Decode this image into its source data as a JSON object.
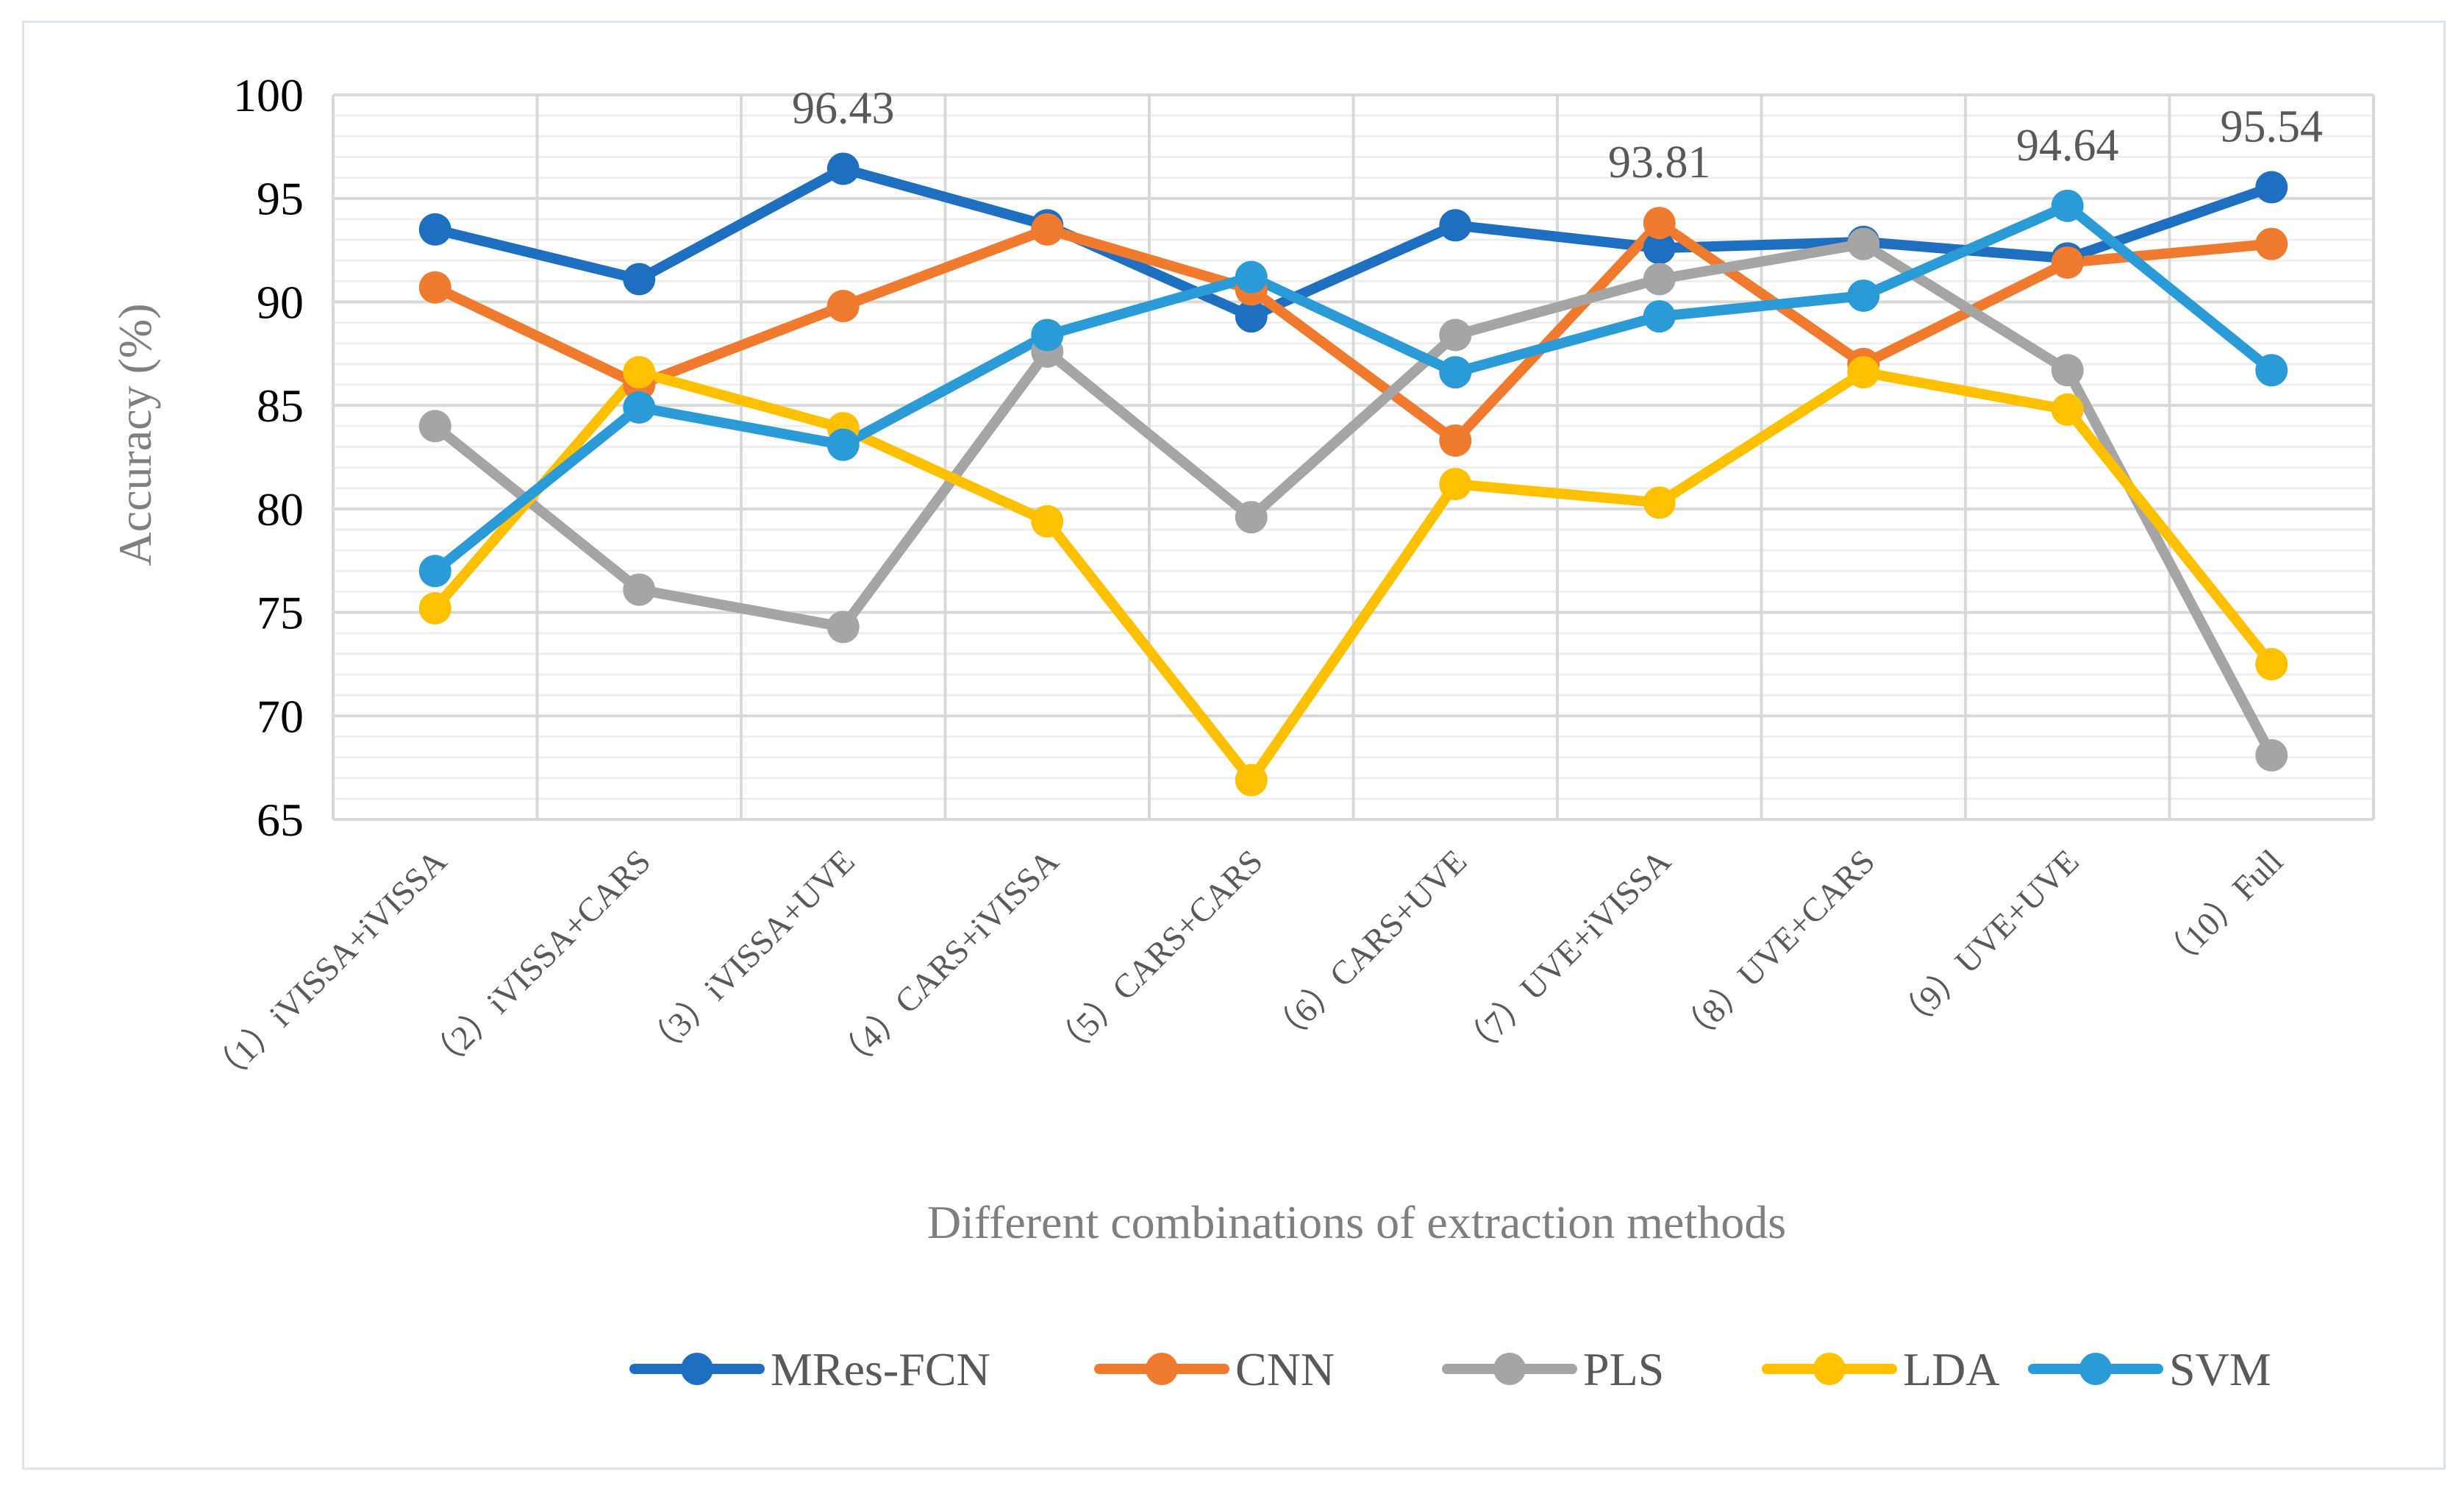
{
  "chart_data": {
    "type": "line",
    "title": "",
    "xlabel": "Different combinations of extraction methods",
    "ylabel": "Accuracy (%)",
    "ylim": [
      65,
      100
    ],
    "yticks": [
      65,
      70,
      75,
      80,
      85,
      90,
      95,
      100
    ],
    "grid": true,
    "legend": "bottom",
    "categories": [
      "（1）iVISSA+iVISSA",
      "（2）iVISSA+CARS",
      "（3）iVISSA+UVE",
      "（4）CARS+iVISSA",
      "（5）CARS+CARS",
      "（6）CARS+UVE",
      "（7）UVE+iVISSA",
      "（8）UVE+CARS",
      "（9）UVE+UVE",
      "（10）Full"
    ],
    "series": [
      {
        "name": "MRes-FCN",
        "color": "#1f6fc1",
        "values": [
          93.5,
          91.1,
          96.43,
          93.7,
          89.3,
          93.7,
          92.6,
          92.9,
          92.1,
          95.54
        ]
      },
      {
        "name": "CNN",
        "color": "#f07a2e",
        "values": [
          90.7,
          86.0,
          89.8,
          93.5,
          90.6,
          83.3,
          93.81,
          87.0,
          91.9,
          92.8
        ]
      },
      {
        "name": "PLS",
        "color": "#a5a5a5",
        "values": [
          84.0,
          76.1,
          74.3,
          87.6,
          79.6,
          88.4,
          91.1,
          92.8,
          86.7,
          68.1
        ]
      },
      {
        "name": "LDA",
        "color": "#ffc000",
        "values": [
          75.2,
          86.6,
          83.9,
          79.4,
          66.9,
          81.2,
          80.3,
          86.6,
          84.8,
          72.5
        ]
      },
      {
        "name": "SVM",
        "color": "#2b9bd7",
        "values": [
          77.0,
          84.9,
          83.1,
          88.4,
          91.2,
          86.6,
          89.3,
          90.3,
          94.64,
          86.7
        ]
      }
    ],
    "data_labels": [
      {
        "category_index": 2,
        "value": 96.43,
        "text": "96.43"
      },
      {
        "category_index": 6,
        "value": 93.81,
        "text": "93.81"
      },
      {
        "category_index": 8,
        "value": 94.64,
        "text": "94.64"
      },
      {
        "category_index": 9,
        "value": 95.54,
        "text": "95.54"
      }
    ]
  }
}
